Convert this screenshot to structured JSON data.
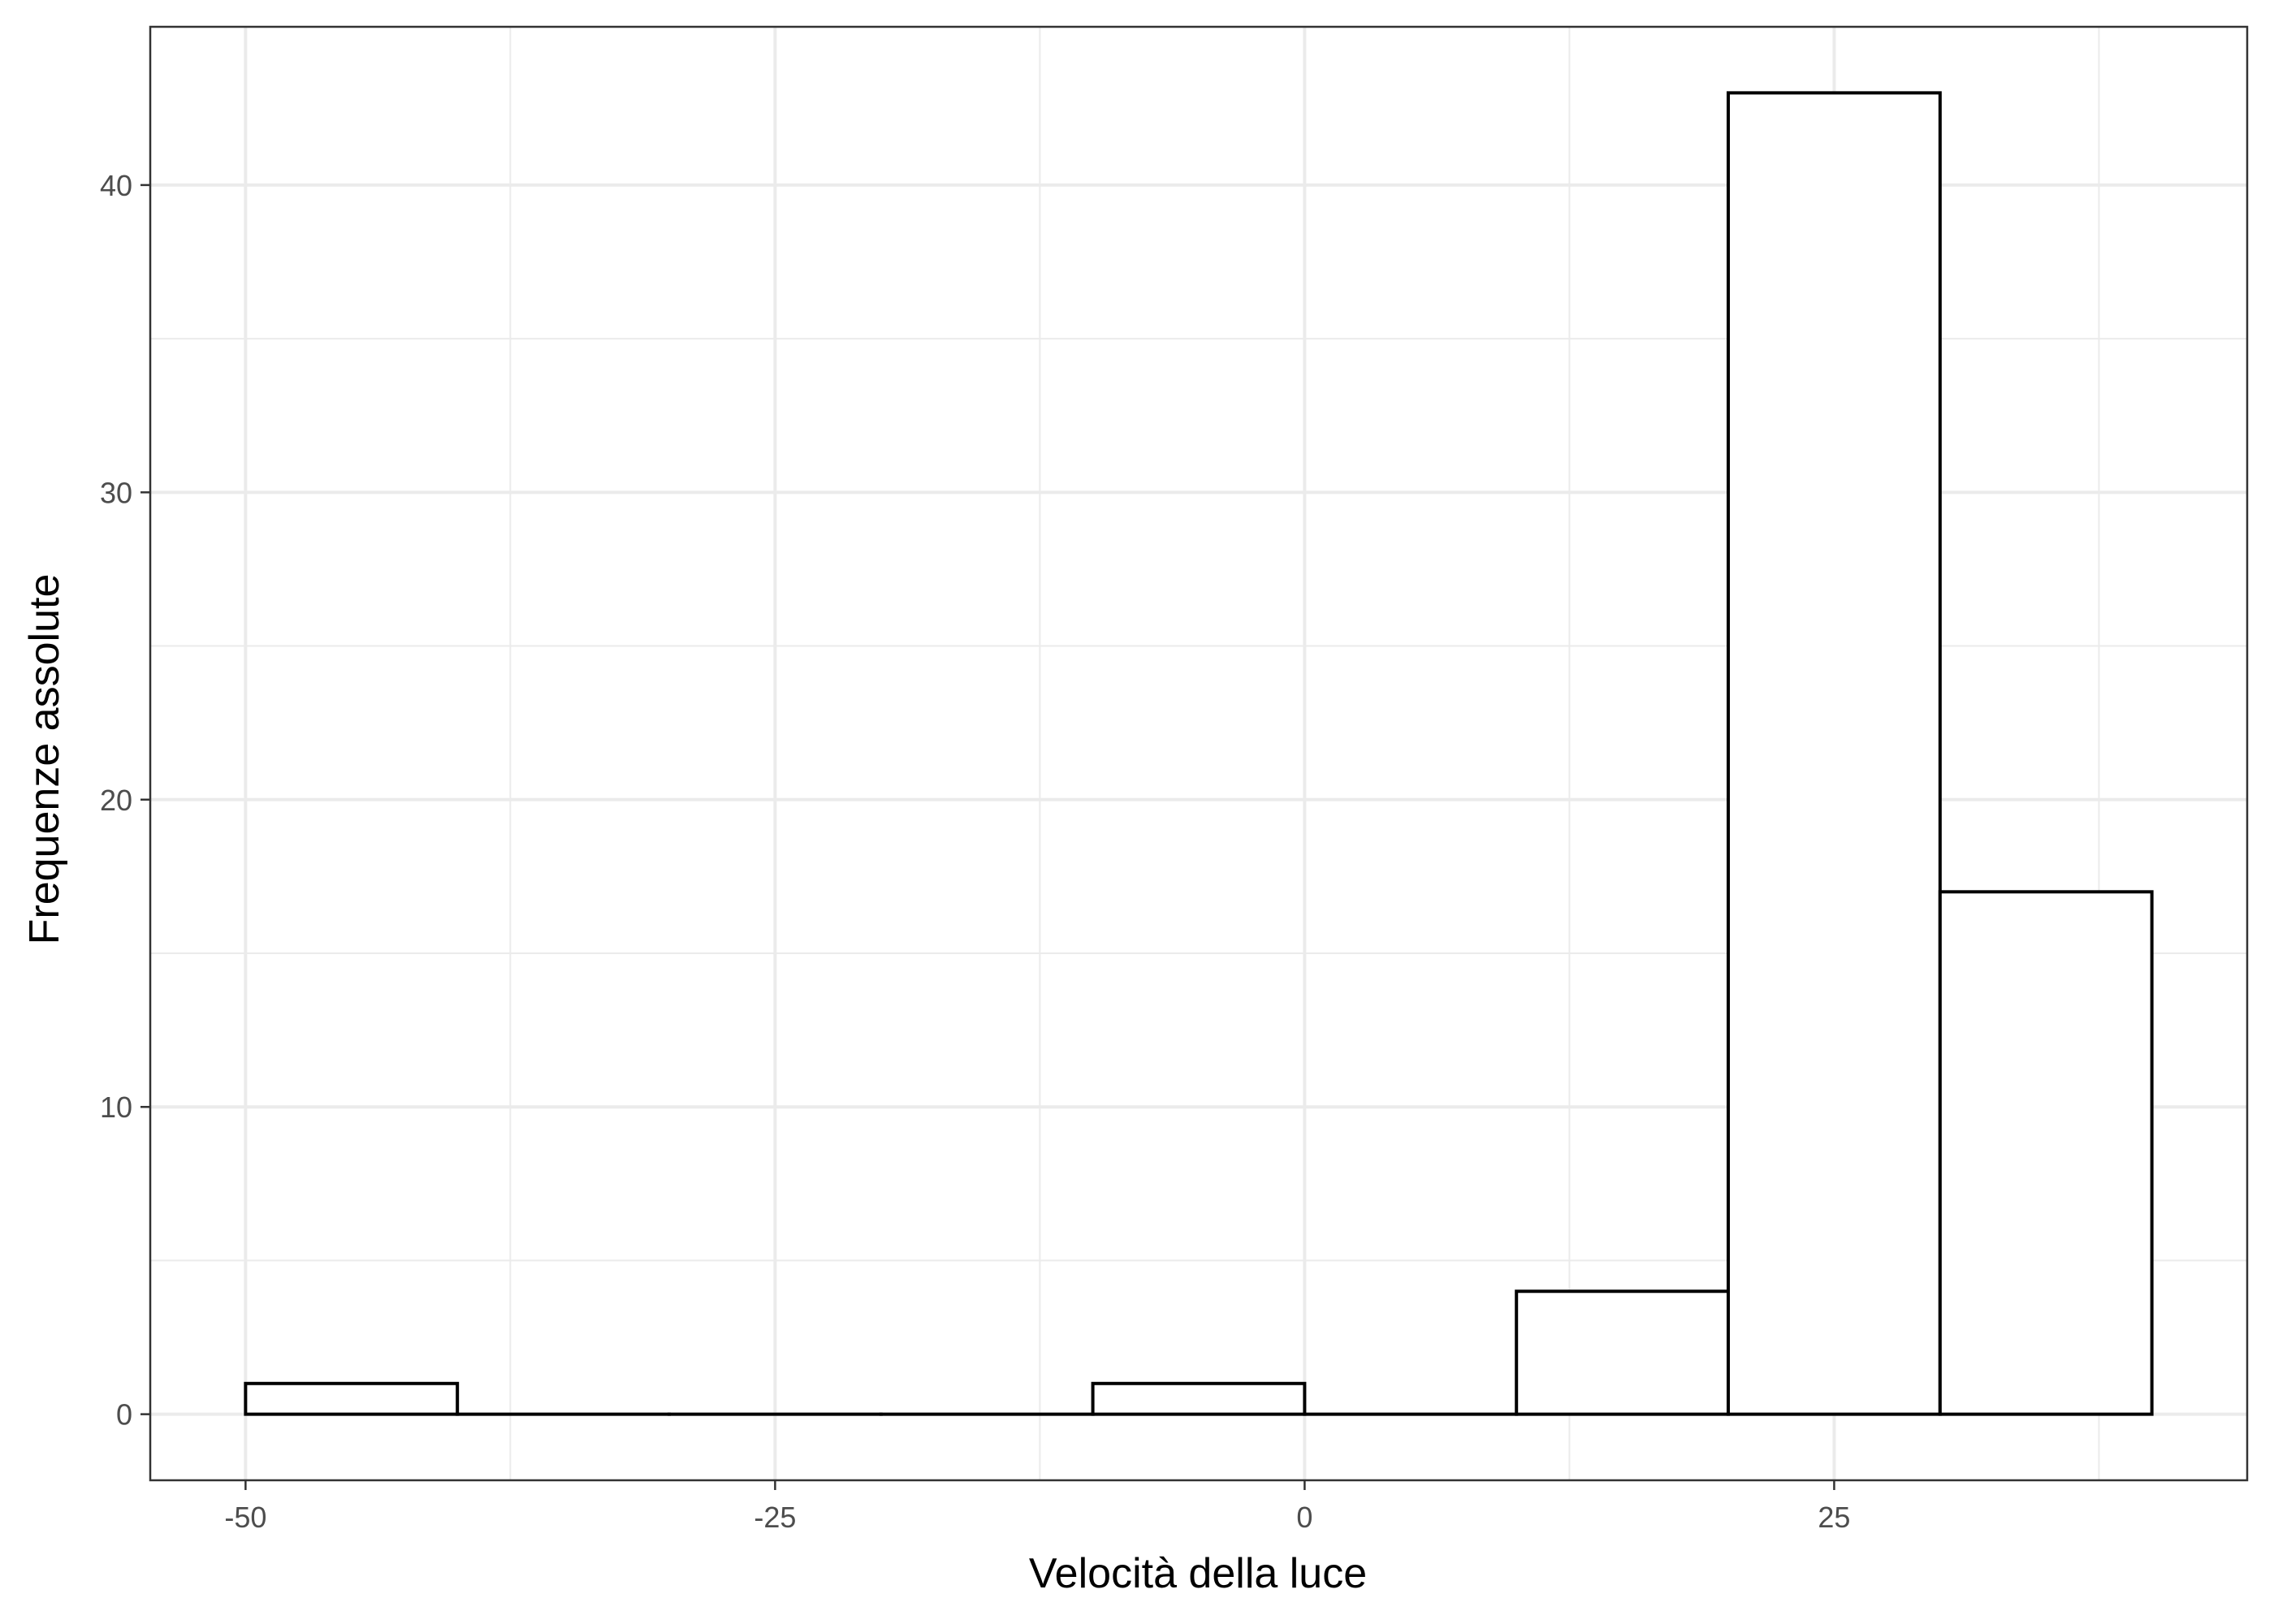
{
  "chart_data": {
    "type": "bar",
    "subtype": "histogram",
    "xlabel": "Velocità della luce",
    "ylabel": "Frequenze assolute",
    "xlim": [
      -54.5,
      44.5
    ],
    "ylim": [
      -2.15,
      45.15
    ],
    "x_ticks": [
      -50,
      -25,
      0,
      25
    ],
    "x_tick_labels": [
      "-50",
      "-25",
      "0",
      "25"
    ],
    "y_ticks": [
      0,
      10,
      20,
      30,
      40
    ],
    "y_tick_labels": [
      "0",
      "10",
      "20",
      "30",
      "40"
    ],
    "bins": [
      {
        "x0": -50,
        "x1": -40,
        "count": 1
      },
      {
        "x0": -40,
        "x1": -30,
        "count": 0
      },
      {
        "x0": -30,
        "x1": -20,
        "count": 0
      },
      {
        "x0": -20,
        "x1": -10,
        "count": 0
      },
      {
        "x0": -10,
        "x1": 0,
        "count": 1
      },
      {
        "x0": 0,
        "x1": 10,
        "count": 0
      },
      {
        "x0": 10,
        "x1": 20,
        "count": 4
      },
      {
        "x0": 20,
        "x1": 30,
        "count": 43
      },
      {
        "x0": 30,
        "x1": 40,
        "count": 17
      }
    ],
    "grid": true,
    "bar_fill": "#ffffff",
    "bar_stroke": "#000000",
    "grid_color": "#ebebeb",
    "panel_border": "#333333"
  }
}
